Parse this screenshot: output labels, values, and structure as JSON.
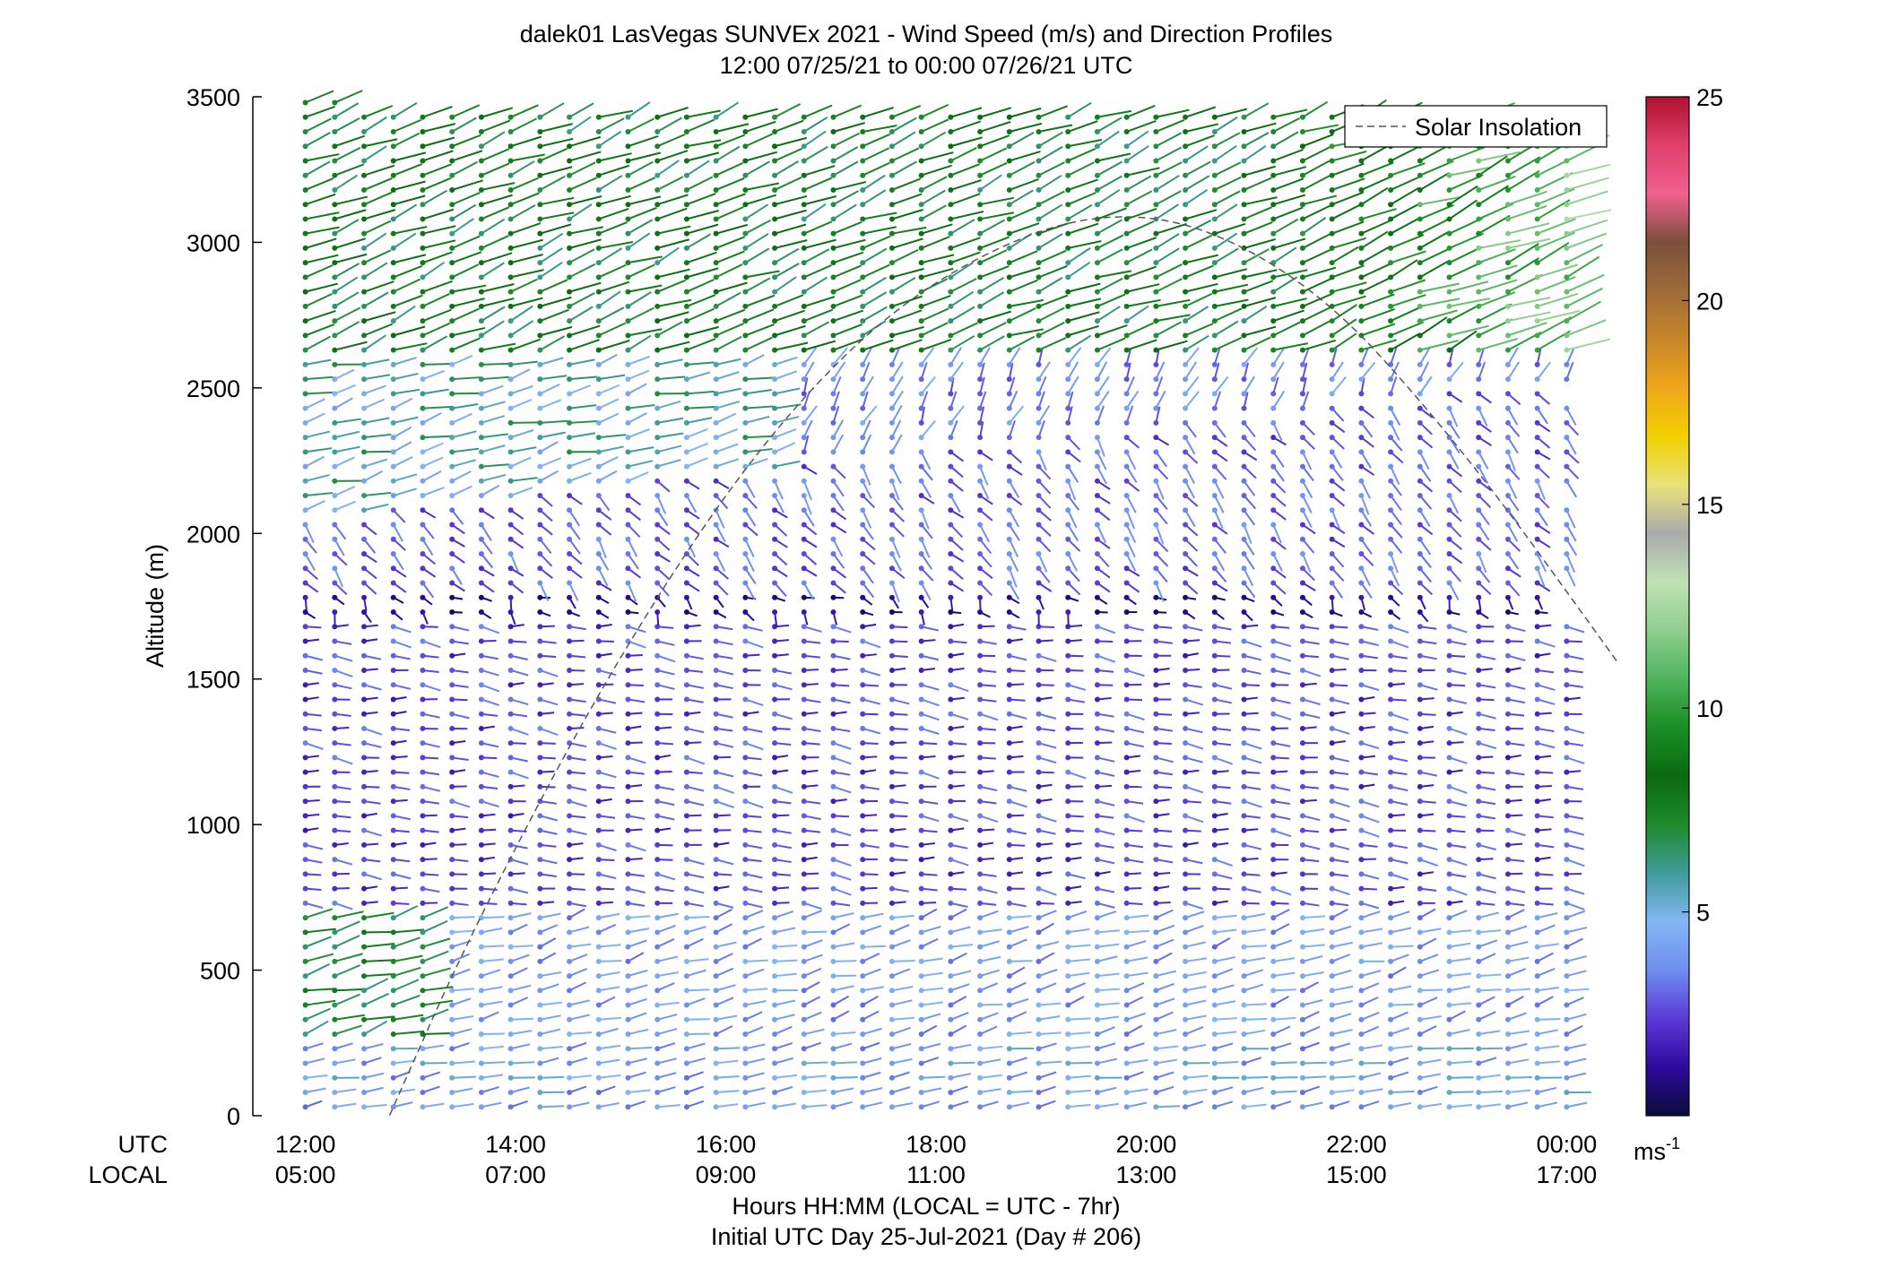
{
  "chart_data": {
    "type": "wind-barb-profile",
    "title": "dalek01 LasVegas SUNVEx 2021 - Wind Speed (m/s) and Direction Profiles",
    "subtitle": "12:00 07/25/21 to 00:00 07/26/21  UTC",
    "ylabel": "Altitude (m)",
    "ylim": [
      0,
      3500
    ],
    "yticks": [
      0,
      500,
      1000,
      1500,
      2000,
      2500,
      3000,
      3500
    ],
    "xlim_hours_utc": [
      11.5,
      24.5
    ],
    "utc_row_label": "UTC",
    "local_row_label": "LOCAL",
    "xticks": [
      {
        "hour": 12,
        "utc": "12:00",
        "local": "05:00"
      },
      {
        "hour": 14,
        "utc": "14:00",
        "local": "07:00"
      },
      {
        "hour": 16,
        "utc": "16:00",
        "local": "09:00"
      },
      {
        "hour": 18,
        "utc": "18:00",
        "local": "11:00"
      },
      {
        "hour": 20,
        "utc": "20:00",
        "local": "13:00"
      },
      {
        "hour": 22,
        "utc": "22:00",
        "local": "15:00"
      },
      {
        "hour": 24,
        "utc": "00:00",
        "local": "17:00"
      }
    ],
    "xlabel": "Hours HH:MM  (LOCAL = UTC - 7hr)",
    "xlabel2": "Initial UTC Day 25-Jul-2021 (Day # 206)",
    "legend": {
      "entries": [
        "Solar Insolation"
      ],
      "placement": "top-right"
    },
    "colorbar": {
      "range": [
        0,
        25
      ],
      "ticks": [
        5,
        10,
        15,
        20,
        25
      ],
      "unit_label": "ms",
      "unit_exponent": "-1",
      "palette": [
        "#0b0c3a",
        "#2d0a9c",
        "#5b3ad8",
        "#6e8ef0",
        "#84b6f4",
        "#3f9c9a",
        "#1e8a2a",
        "#0a6a12",
        "#1a8e24",
        "#4fb35c",
        "#8fce8f",
        "#bfe2b4",
        "#aaaaaa",
        "#e8e27a",
        "#f2d000",
        "#f0a61a",
        "#c7862a",
        "#a06a3a",
        "#7a4f3b",
        "#f06090",
        "#e0406a",
        "#b01030"
      ]
    },
    "solar_insolation": {
      "description_points": [
        {
          "hour": 12.8,
          "altitude": 0
        },
        {
          "hour": 13.6,
          "altitude": 650
        },
        {
          "hour": 15.0,
          "altitude": 1600
        },
        {
          "hour": 16.5,
          "altitude": 2400
        },
        {
          "hour": 18.0,
          "altitude": 2900
        },
        {
          "hour": 19.8,
          "altitude": 3150
        },
        {
          "hour": 21.5,
          "altitude": 2900
        },
        {
          "hour": 23.0,
          "altitude": 2300
        },
        {
          "hour": 24.5,
          "altitude": 1550
        }
      ]
    },
    "wind_profile_regimes": [
      {
        "altitude_range": [
          0,
          1700
        ],
        "speed_ms": "1-5",
        "direction": "westerly to southwesterly, light"
      },
      {
        "altitude_range": [
          1700,
          1800
        ],
        "speed_ms": "0-2",
        "direction": "near calm"
      },
      {
        "altitude_range": [
          1800,
          2200
        ],
        "speed_ms": "2-4",
        "direction": "northwesterly"
      },
      {
        "altitude_range": [
          2200,
          3500
        ],
        "speed_ms": "5-10",
        "direction": "southwesterly, stronger aloft (up to ~15 late)"
      }
    ]
  }
}
